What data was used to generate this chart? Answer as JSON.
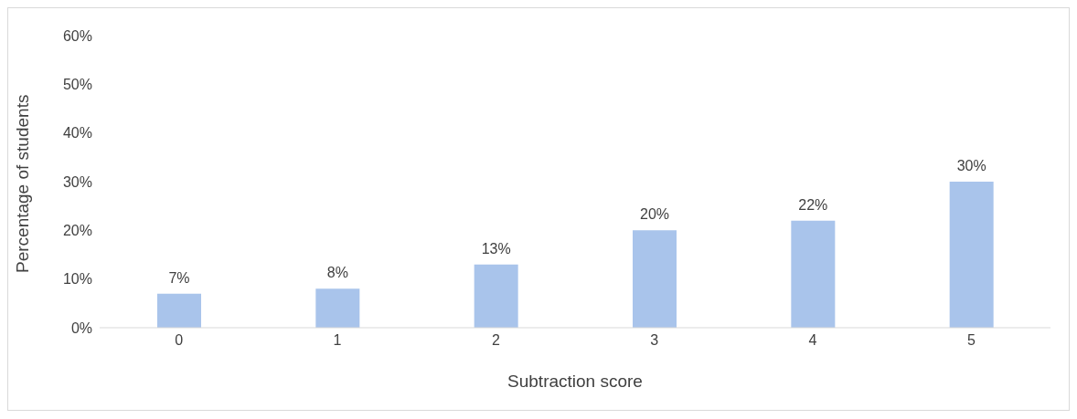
{
  "chart_data": {
    "type": "bar",
    "xlabel": "Subtraction score",
    "ylabel": "Percentage of students",
    "categories": [
      "0",
      "1",
      "2",
      "3",
      "4",
      "5"
    ],
    "values": [
      7,
      8,
      13,
      20,
      22,
      30
    ],
    "value_labels": [
      "7%",
      "8%",
      "13%",
      "20%",
      "22%",
      "30%"
    ],
    "color": "#a9c4eb",
    "ylim": [
      0,
      60
    ],
    "yticks": [
      {
        "value": 0,
        "label": "0%"
      },
      {
        "value": 10,
        "label": "10%"
      },
      {
        "value": 20,
        "label": "20%"
      },
      {
        "value": 30,
        "label": "30%"
      },
      {
        "value": 40,
        "label": "40%"
      },
      {
        "value": 50,
        "label": "50%"
      },
      {
        "value": 60,
        "label": "60%"
      }
    ],
    "grid": false,
    "legend": false
  }
}
